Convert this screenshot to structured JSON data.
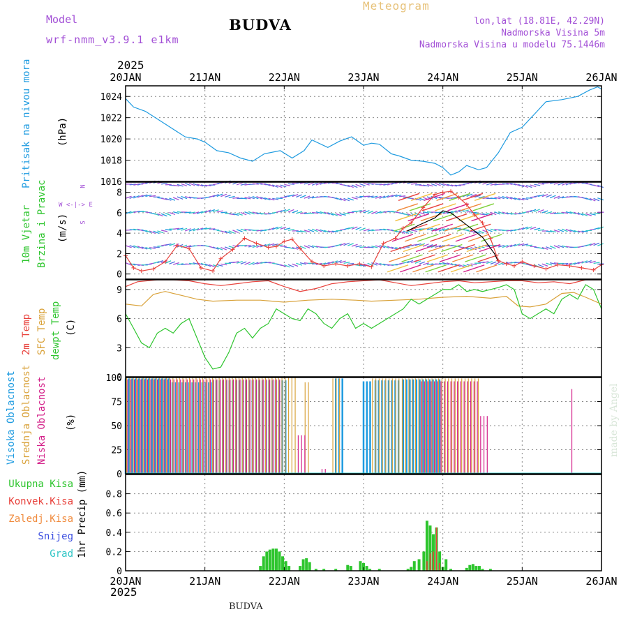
{
  "header": {
    "model_label": "Model",
    "model_name": "wrf-nmm_v3.9.1 e1km",
    "title": "BUDVA",
    "meteogram_label": "Meteogram",
    "coords": "lon,lat (18.81E, 42.29N)",
    "altitude": "Nadmorska Visina 5m",
    "model_altitude": "Nadmorska Visina u modelu 75.1446m",
    "year_top": "2025",
    "year_bottom": "2025",
    "footer": "BUDVA",
    "watermark": "made by Angel"
  },
  "labels": {
    "pressure": "Pritisak na nivou mora",
    "pressure_unit": "(hPa)",
    "wind1": "10m Vjetar",
    "wind2": "Brzina i Pravac",
    "wind_unit": "(m/s)",
    "compass_top": "N",
    "compass_mid": "W <-|-> E",
    "compass_bot": "S",
    "temp2m": "2m Temp",
    "tempsfc": "SFC Temp",
    "tempdew": "dewpt Temp",
    "temp_unit": "(C)",
    "cloud_high": "Visoka Oblacnost",
    "cloud_mid": "Srednja Oblacnost",
    "cloud_low": "Niska Oblacnost",
    "cloud_unit": "(%)",
    "precip_total": "Ukupna Kisa",
    "precip_conv": "Konvek.Kisa",
    "precip_frz": "Zaledj.Kisa",
    "precip_snow": "Snijeg",
    "precip_hail": "Grad",
    "precip_unit": "1hr Precip (mm)"
  },
  "colors": {
    "pressure": "#1e9be0",
    "temp2m": "#e8423c",
    "tempsfc": "#d9a23a",
    "tempdew": "#2ec52e",
    "cloud_high": "#1e9be0",
    "cloud_mid": "#d9a23a",
    "cloud_low": "#d4228a",
    "precip": "#2ec52e",
    "precip_conv": "#e8423c",
    "wind_speed": "#e8423c",
    "gust": "#000000"
  },
  "chart_data": [
    {
      "type": "line",
      "name": "pressure",
      "x_ticks": [
        "20JAN",
        "21JAN",
        "22JAN",
        "23JAN",
        "24JAN",
        "25JAN",
        "26JAN"
      ],
      "ylim": [
        1016,
        1025
      ],
      "yticks": [
        1016,
        1018,
        1020,
        1022,
        1024
      ],
      "ylabel": "(hPa)",
      "x_days": [
        0,
        0.1,
        0.25,
        0.5,
        0.75,
        0.9,
        1.0,
        1.15,
        1.3,
        1.45,
        1.6,
        1.75,
        1.95,
        2.1,
        2.25,
        2.35,
        2.55,
        2.7,
        2.85,
        3.0,
        3.1,
        3.2,
        3.35,
        3.45,
        3.6,
        3.75,
        3.9,
        4.0,
        4.1,
        4.2,
        4.3,
        4.45,
        4.55,
        4.7,
        4.85,
        5.0,
        5.15,
        5.3,
        5.5,
        5.7,
        5.85,
        5.95,
        6.0
      ],
      "values": [
        1023.8,
        1023.0,
        1022.6,
        1021.4,
        1020.2,
        1020.0,
        1019.7,
        1018.9,
        1018.7,
        1018.2,
        1017.9,
        1018.6,
        1018.9,
        1018.2,
        1018.9,
        1019.9,
        1019.2,
        1019.8,
        1020.2,
        1019.4,
        1019.6,
        1019.5,
        1018.6,
        1018.4,
        1018.0,
        1017.9,
        1017.7,
        1017.3,
        1016.6,
        1016.9,
        1017.5,
        1017.1,
        1017.3,
        1018.7,
        1020.6,
        1021.1,
        1022.3,
        1023.5,
        1023.7,
        1024.0,
        1024.6,
        1024.9,
        1024.7
      ]
    },
    {
      "type": "line",
      "name": "wind",
      "ylim": [
        -0.5,
        9
      ],
      "yticks": [
        0,
        2,
        4,
        6,
        8
      ],
      "ylabel": "(m/s)",
      "series": [
        {
          "name": "speed",
          "x_days": [
            0,
            0.1,
            0.2,
            0.35,
            0.5,
            0.65,
            0.8,
            0.95,
            1.1,
            1.2,
            1.35,
            1.5,
            1.65,
            1.8,
            1.9,
            2.0,
            2.1,
            2.2,
            2.35,
            2.5,
            2.65,
            2.8,
            2.95,
            3.1,
            3.25,
            3.4,
            3.5,
            3.6,
            3.75,
            3.9,
            4.0,
            4.1,
            4.2,
            4.3,
            4.4,
            4.5,
            4.6,
            4.7,
            4.8,
            4.9,
            5.0,
            5.15,
            5.3,
            5.45,
            5.6,
            5.75,
            5.9,
            6.0
          ],
          "values": [
            1.8,
            0.6,
            0.3,
            0.5,
            1.2,
            2.8,
            2.5,
            0.6,
            0.3,
            1.5,
            2.4,
            3.5,
            3.0,
            2.6,
            2.7,
            3.2,
            3.4,
            2.5,
            1.2,
            0.8,
            1.0,
            0.8,
            1.0,
            0.7,
            3.0,
            3.5,
            4.5,
            5.0,
            6.5,
            7.8,
            8.0,
            8.1,
            7.5,
            6.8,
            5.8,
            5.0,
            3.5,
            1.3,
            1.0,
            0.8,
            1.2,
            0.8,
            0.5,
            0.9,
            0.8,
            0.6,
            0.4,
            0.9
          ]
        },
        {
          "name": "gust",
          "x_days": [
            3.55,
            3.7,
            3.9,
            4.0,
            4.1,
            4.2,
            4.35,
            4.5,
            4.65,
            4.7
          ],
          "values": [
            4.2,
            4.8,
            5.5,
            6.2,
            6.0,
            5.4,
            4.5,
            3.6,
            2.0,
            1.2
          ]
        }
      ]
    },
    {
      "type": "line",
      "name": "temperature",
      "ylim": [
        0,
        10
      ],
      "yticks": [
        0,
        3,
        6,
        9
      ],
      "ylabel": "(C)",
      "series": [
        {
          "name": "2m",
          "x_days": [
            0,
            0.15,
            0.4,
            0.6,
            0.8,
            1.0,
            1.2,
            1.4,
            1.6,
            1.8,
            2.0,
            2.2,
            2.4,
            2.6,
            2.8,
            3.0,
            3.2,
            3.4,
            3.6,
            3.8,
            4.0,
            4.2,
            4.4,
            4.6,
            4.8,
            5.0,
            5.2,
            5.4,
            5.6,
            5.8,
            6.0
          ],
          "values": [
            9.3,
            9.8,
            10.0,
            10.0,
            9.9,
            9.6,
            9.4,
            9.6,
            9.8,
            9.9,
            9.3,
            8.8,
            9.1,
            9.6,
            9.8,
            9.9,
            10.0,
            9.7,
            9.4,
            9.6,
            9.8,
            9.9,
            9.7,
            9.8,
            9.9,
            9.9,
            9.7,
            9.8,
            9.6,
            10.0,
            10.0
          ]
        },
        {
          "name": "sfc",
          "x_days": [
            0,
            0.2,
            0.35,
            0.5,
            0.7,
            0.9,
            1.1,
            1.4,
            1.7,
            2.0,
            2.3,
            2.6,
            2.9,
            3.1,
            3.4,
            3.7,
            4.0,
            4.3,
            4.6,
            4.8,
            4.95,
            5.1,
            5.3,
            5.5,
            5.65,
            5.8,
            6.0
          ],
          "values": [
            7.5,
            7.3,
            8.5,
            8.8,
            8.4,
            8.0,
            7.8,
            7.9,
            7.9,
            7.7,
            7.9,
            8.0,
            7.9,
            7.8,
            7.9,
            8.0,
            8.2,
            8.3,
            8.1,
            8.3,
            7.3,
            7.2,
            7.5,
            8.6,
            8.7,
            8.2,
            7.5
          ]
        },
        {
          "name": "dewpoint",
          "x_days": [
            0,
            0.1,
            0.2,
            0.3,
            0.4,
            0.5,
            0.6,
            0.7,
            0.8,
            0.9,
            1.0,
            1.1,
            1.2,
            1.3,
            1.4,
            1.5,
            1.6,
            1.7,
            1.8,
            1.9,
            2.0,
            2.1,
            2.2,
            2.3,
            2.4,
            2.5,
            2.6,
            2.7,
            2.8,
            2.9,
            3.0,
            3.1,
            3.2,
            3.3,
            3.4,
            3.5,
            3.6,
            3.7,
            3.8,
            3.9,
            4.0,
            4.1,
            4.2,
            4.3,
            4.4,
            4.5,
            4.6,
            4.7,
            4.8,
            4.9,
            5.0,
            5.1,
            5.2,
            5.3,
            5.4,
            5.5,
            5.6,
            5.7,
            5.8,
            5.9,
            6.0
          ],
          "values": [
            6.5,
            5.0,
            3.5,
            3.0,
            4.5,
            5.0,
            4.5,
            5.5,
            6.0,
            4.0,
            2.0,
            0.8,
            1.0,
            2.5,
            4.5,
            5.0,
            4.0,
            5.0,
            5.5,
            7.0,
            6.5,
            6.0,
            5.8,
            7.0,
            6.5,
            5.5,
            5.0,
            6.0,
            6.5,
            5.0,
            5.5,
            5.0,
            5.5,
            6.0,
            6.5,
            7.0,
            8.0,
            7.5,
            8.0,
            8.5,
            9.0,
            9.0,
            9.5,
            8.8,
            9.0,
            8.8,
            9.0,
            9.2,
            9.5,
            9.0,
            6.5,
            6.0,
            6.5,
            7.0,
            6.5,
            8.0,
            8.5,
            8.0,
            9.5,
            9.0,
            7.0
          ]
        }
      ]
    },
    {
      "type": "bar",
      "name": "cloud_cover",
      "ylim": [
        0,
        100
      ],
      "yticks": [
        0,
        25,
        50,
        75,
        100
      ],
      "ylabel": "(%)",
      "series": [
        {
          "name": "high",
          "ranges": [
            [
              0.0,
              0.55,
              99
            ],
            [
              0.55,
              1.1,
              95
            ],
            [
              1.1,
              2.05,
              97
            ],
            [
              2.65,
              2.75,
              99
            ],
            [
              3.0,
              3.1,
              96
            ],
            [
              3.15,
              3.45,
              97
            ],
            [
              3.5,
              4.0,
              98
            ]
          ]
        },
        {
          "name": "middle",
          "ranges": [
            [
              0.0,
              2.15,
              100
            ],
            [
              2.25,
              2.3,
              95
            ],
            [
              2.6,
              2.7,
              99
            ],
            [
              3.1,
              4.45,
              99
            ]
          ]
        },
        {
          "name": "low",
          "ranges": [
            [
              0.0,
              1.95,
              98
            ],
            [
              2.15,
              2.25,
              40
            ],
            [
              2.45,
              2.5,
              5
            ],
            [
              3.7,
              4.45,
              96
            ],
            [
              4.45,
              4.55,
              60
            ],
            [
              5.6,
              5.62,
              88
            ]
          ]
        }
      ]
    },
    {
      "type": "bar",
      "name": "precipitation",
      "ylim": [
        0,
        1.0
      ],
      "yticks": [
        0,
        0.2,
        0.4,
        0.6,
        0.8
      ],
      "ylabel": "1hr Precip (mm)",
      "x_days": [
        1.7,
        1.74,
        1.78,
        1.82,
        1.86,
        1.9,
        1.94,
        1.98,
        2.02,
        2.06,
        2.2,
        2.24,
        2.28,
        2.32,
        2.4,
        2.5,
        2.65,
        2.8,
        2.84,
        2.96,
        3.0,
        3.04,
        3.08,
        3.2,
        3.56,
        3.6,
        3.64,
        3.7,
        3.76,
        3.8,
        3.84,
        3.88,
        3.92,
        3.96,
        4.0,
        4.04,
        4.1,
        4.3,
        4.34,
        4.38,
        4.42,
        4.46,
        4.5,
        4.6
      ],
      "total": [
        0.05,
        0.15,
        0.2,
        0.22,
        0.23,
        0.23,
        0.2,
        0.15,
        0.1,
        0.05,
        0.05,
        0.12,
        0.13,
        0.09,
        0.02,
        0.02,
        0.02,
        0.06,
        0.05,
        0.1,
        0.08,
        0.05,
        0.02,
        0.02,
        0.02,
        0.04,
        0.1,
        0.12,
        0.2,
        0.52,
        0.47,
        0.38,
        0.45,
        0.2,
        0.04,
        0.12,
        0.02,
        0.03,
        0.06,
        0.07,
        0.05,
        0.05,
        0.02,
        0.02
      ],
      "convective": [
        0,
        0,
        0,
        0,
        0,
        0,
        0,
        0,
        0,
        0,
        0,
        0,
        0,
        0,
        0,
        0,
        0,
        0,
        0,
        0,
        0,
        0,
        0,
        0,
        0,
        0,
        0,
        0,
        0,
        0.1,
        0.18,
        0.2,
        0.45,
        0.08,
        0,
        0,
        0,
        0,
        0,
        0,
        0,
        0,
        0,
        0
      ]
    }
  ]
}
